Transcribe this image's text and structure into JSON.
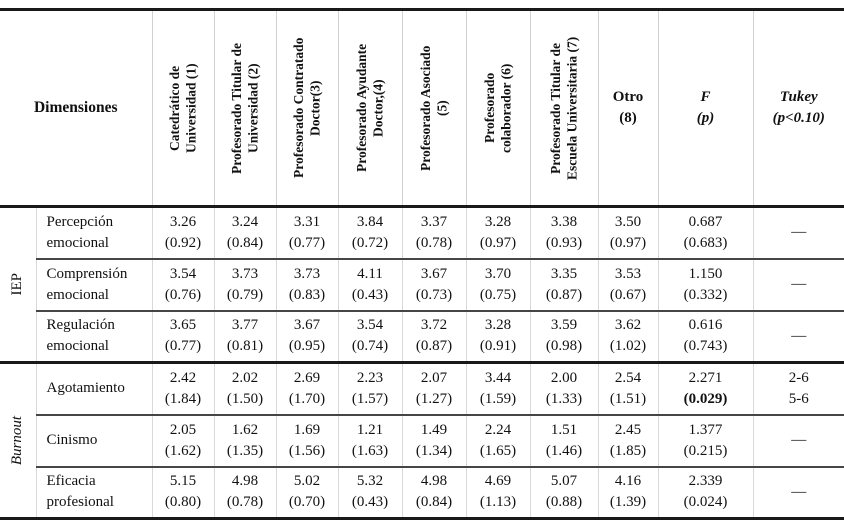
{
  "table": {
    "corner_header": "Dimensiones",
    "rotated_columns": [
      "Catedrático de\nUniversidad (1)",
      "Profesorado Titular de\nUniversidad (2)",
      "Profesorado Contratado\nDoctor(3)",
      "Profesorado Ayudante\nDoctor,(4)",
      "Profesorado Asociado\n(5)",
      "Profesorado\ncolaborador (6)",
      "Profesorado Titular de\nEscuela Universitaria (7)"
    ],
    "otro_column": "Otro\n(8)",
    "f_column": "F\n(p)",
    "tukey_column": "Tukey\n(p<0.10)",
    "groups": [
      {
        "label": "IEP",
        "italic": false,
        "rows": [
          {
            "dimension": "Percepción\nemocional",
            "cells": [
              [
                "3.26",
                "(0.92)"
              ],
              [
                "3.24",
                "(0.84)"
              ],
              [
                "3.31",
                "(0.77)"
              ],
              [
                "3.84",
                "(0.72)"
              ],
              [
                "3.37",
                "(0.78)"
              ],
              [
                "3.28",
                "(0.97)"
              ],
              [
                "3.38",
                "(0.93)"
              ],
              [
                "3.50",
                "(0.97)"
              ]
            ],
            "f": [
              "0.687",
              "(0.683)"
            ],
            "f_bold": false,
            "tukey": "—"
          },
          {
            "dimension": "Comprensión\nemocional",
            "cells": [
              [
                "3.54",
                "(0.76)"
              ],
              [
                "3.73",
                "(0.79)"
              ],
              [
                "3.73",
                "(0.83)"
              ],
              [
                "4.11",
                "(0.43)"
              ],
              [
                "3.67",
                "(0.73)"
              ],
              [
                "3.70",
                "(0.75)"
              ],
              [
                "3.35",
                "(0.87)"
              ],
              [
                "3.53",
                "(0.67)"
              ]
            ],
            "f": [
              "1.150",
              "(0.332)"
            ],
            "f_bold": false,
            "tukey": "—"
          },
          {
            "dimension": "Regulación\nemocional",
            "cells": [
              [
                "3.65",
                "(0.77)"
              ],
              [
                "3.77",
                "(0.81)"
              ],
              [
                "3.67",
                "(0.95)"
              ],
              [
                "3.54",
                "(0.74)"
              ],
              [
                "3.72",
                "(0.87)"
              ],
              [
                "3.28",
                "(0.91)"
              ],
              [
                "3.59",
                "(0.98)"
              ],
              [
                "3.62",
                "(1.02)"
              ]
            ],
            "f": [
              "0.616",
              "(0.743)"
            ],
            "f_bold": false,
            "tukey": "—"
          }
        ]
      },
      {
        "label": "Burnout",
        "italic": true,
        "rows": [
          {
            "dimension": "Agotamiento",
            "cells": [
              [
                "2.42",
                "(1.84)"
              ],
              [
                "2.02",
                "(1.50)"
              ],
              [
                "2.69",
                "(1.70)"
              ],
              [
                "2.23",
                "(1.57)"
              ],
              [
                "2.07",
                "(1.27)"
              ],
              [
                "3.44",
                "(1.59)"
              ],
              [
                "2.00",
                "(1.33)"
              ],
              [
                "2.54",
                "(1.51)"
              ]
            ],
            "f": [
              "2.271",
              "(0.029)"
            ],
            "f_bold": true,
            "tukey": "2-6\n5-6"
          },
          {
            "dimension": "Cinismo",
            "cells": [
              [
                "2.05",
                "(1.62)"
              ],
              [
                "1.62",
                "(1.35)"
              ],
              [
                "1.69",
                "(1.56)"
              ],
              [
                "1.21",
                "(1.63)"
              ],
              [
                "1.49",
                "(1.34)"
              ],
              [
                "2.24",
                "(1.65)"
              ],
              [
                "1.51",
                "(1.46)"
              ],
              [
                "2.45",
                "(1.85)"
              ]
            ],
            "f": [
              "1.377",
              "(0.215)"
            ],
            "f_bold": false,
            "tukey": "—"
          },
          {
            "dimension": "Eficacia\nprofesional",
            "cells": [
              [
                "5.15",
                "(0.80)"
              ],
              [
                "4.98",
                "(0.78)"
              ],
              [
                "5.02",
                "(0.70)"
              ],
              [
                "5.32",
                "(0.43)"
              ],
              [
                "4.98",
                "(0.84)"
              ],
              [
                "4.69",
                "(1.13)"
              ],
              [
                "5.07",
                "(0.88)"
              ],
              [
                "4.16",
                "(1.39)"
              ]
            ],
            "f": [
              "2.339",
              "(0.024)"
            ],
            "f_bold": false,
            "tukey": "—"
          }
        ]
      }
    ]
  }
}
